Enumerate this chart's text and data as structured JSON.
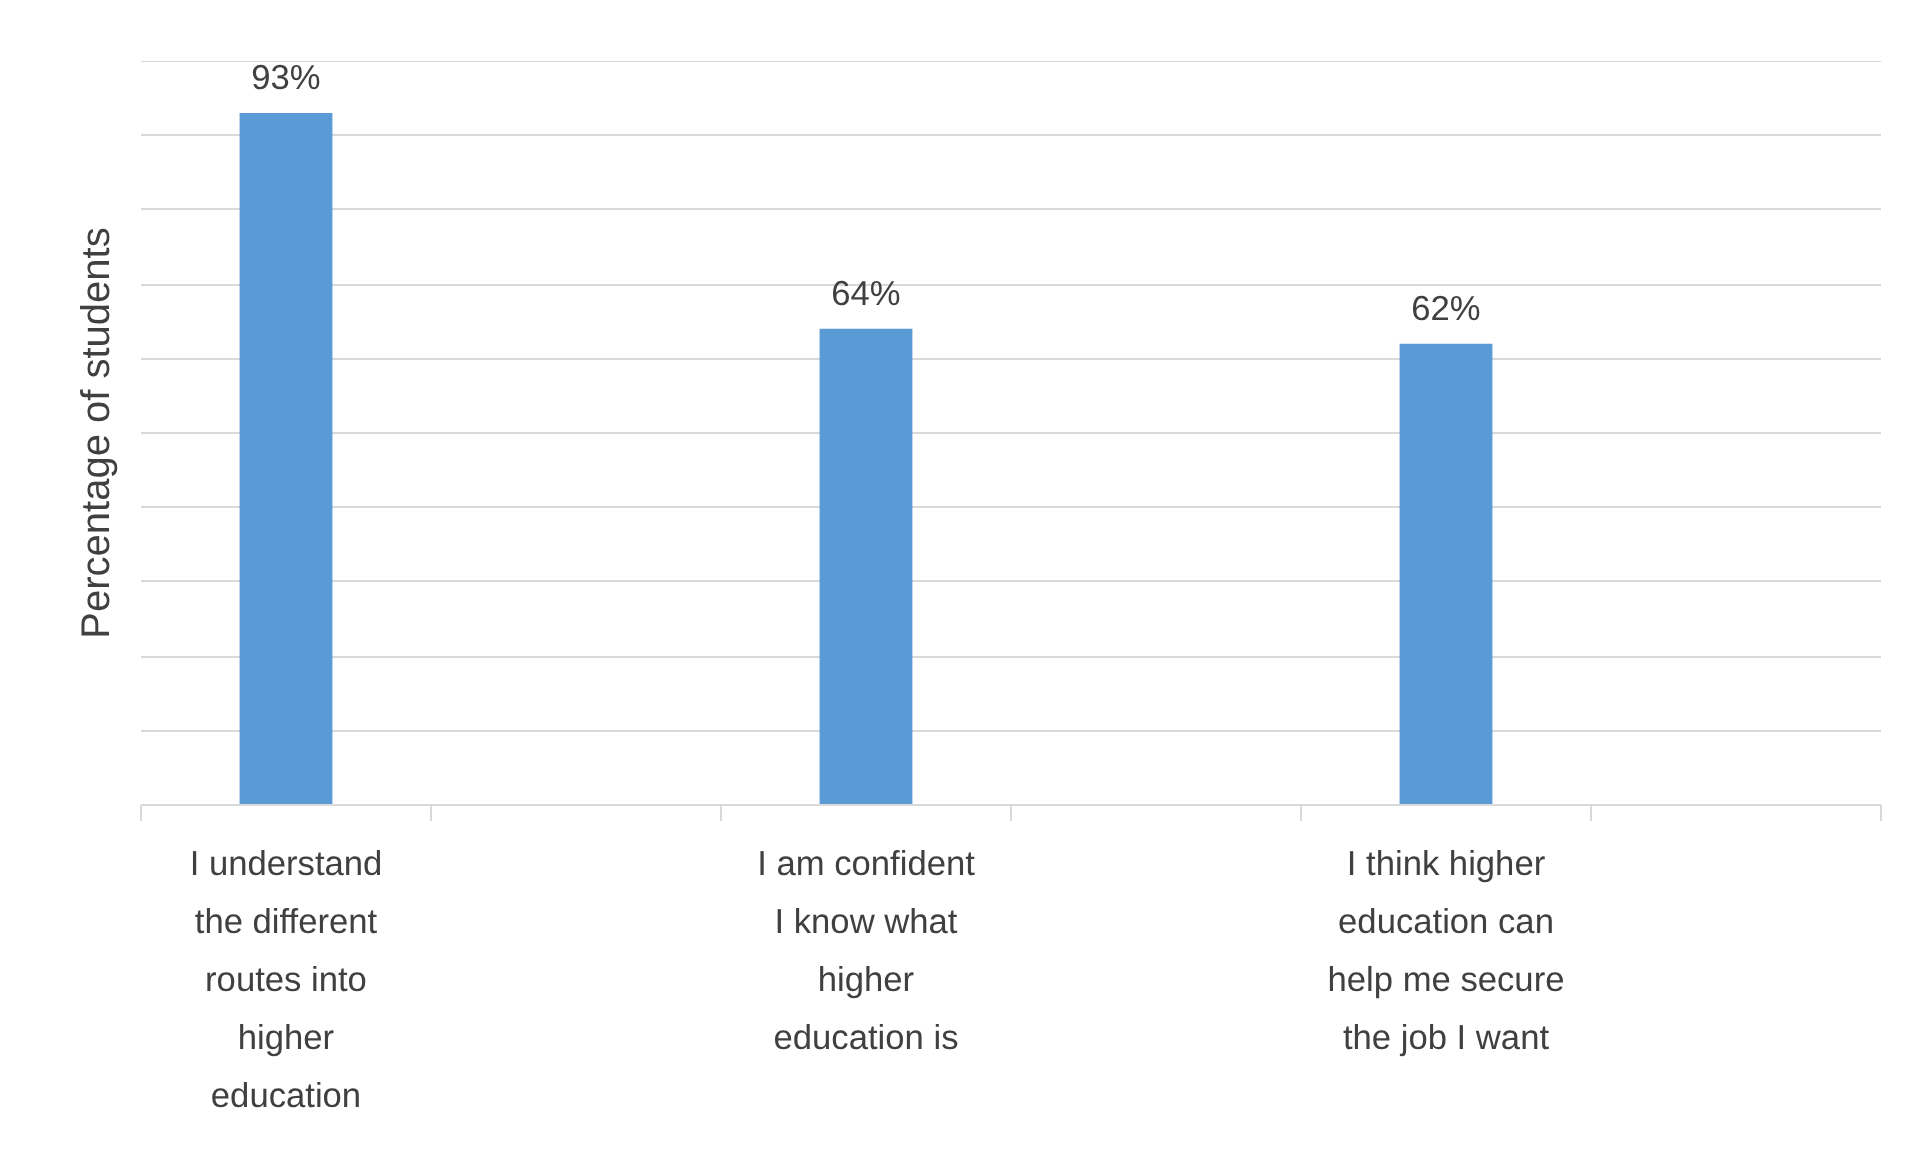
{
  "chart_data": {
    "type": "bar",
    "ylabel": "Percentage of students",
    "categories": [
      "I understand the different routes into higher education",
      null,
      "I am confident I know what higher education is",
      null,
      "I think higher education can help me secure the job I want",
      null
    ],
    "values": [
      93,
      null,
      64,
      null,
      62,
      null
    ],
    "value_labels": [
      "93%",
      null,
      "64%",
      null,
      "62%",
      null
    ],
    "color": "#5b9bd5",
    "ylim": [
      0,
      100
    ],
    "yticks": [
      {
        "value": 0,
        "label": null
      },
      {
        "value": 10,
        "label": null
      },
      {
        "value": 20,
        "label": null
      },
      {
        "value": 30,
        "label": null
      },
      {
        "value": 40,
        "label": null
      },
      {
        "value": 50,
        "label": null
      },
      {
        "value": 60,
        "label": null
      },
      {
        "value": 70,
        "label": null
      },
      {
        "value": 80,
        "label": null
      },
      {
        "value": 90,
        "label": null
      },
      {
        "value": 100,
        "label": null
      }
    ],
    "tick_labels": "x",
    "grid": "y"
  }
}
